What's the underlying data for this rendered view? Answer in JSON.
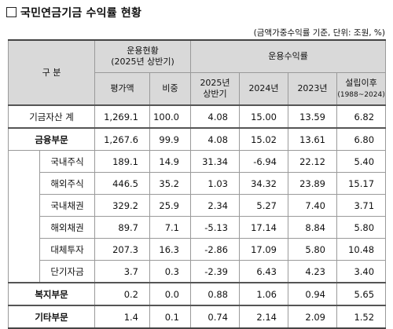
{
  "title": "국민연금기금 수익률 현황",
  "note": "(금액가중수익률 기준, 단위: 조원, %)",
  "header": {
    "category": "구 분",
    "group1": "운용현황",
    "group1_sub": "(2025년 상반기)",
    "group2": "운용수익률",
    "col_value": "평가액",
    "col_share": "비중",
    "col_2025": "2025년",
    "col_2025_b": "상반기",
    "col_2024": "2024년",
    "col_2023": "2023년",
    "col_since": "설립이후",
    "col_since_sub": "(1988~2024)"
  },
  "rows": [
    {
      "label": "기금자산 계",
      "value": "1,269.1",
      "share": "100.0",
      "r2025": "4.08",
      "r2024": "15.00",
      "r2023": "13.59",
      "since": "6.82"
    },
    {
      "label": "금융부문",
      "value": "1,267.6",
      "share": "99.9",
      "r2025": "4.08",
      "r2024": "15.02",
      "r2023": "13.61",
      "since": "6.80"
    },
    {
      "label": "국내주식",
      "value": "189.1",
      "share": "14.9",
      "r2025": "31.34",
      "r2024": "-6.94",
      "r2023": "22.12",
      "since": "5.40"
    },
    {
      "label": "해외주식",
      "value": "446.5",
      "share": "35.2",
      "r2025": "1.03",
      "r2024": "34.32",
      "r2023": "23.89",
      "since": "15.17"
    },
    {
      "label": "국내채권",
      "value": "329.2",
      "share": "25.9",
      "r2025": "2.34",
      "r2024": "5.27",
      "r2023": "7.40",
      "since": "3.71"
    },
    {
      "label": "해외채권",
      "value": "89.7",
      "share": "7.1",
      "r2025": "-5.13",
      "r2024": "17.14",
      "r2023": "8.84",
      "since": "5.80"
    },
    {
      "label": "대체투자",
      "value": "207.3",
      "share": "16.3",
      "r2025": "-2.86",
      "r2024": "17.09",
      "r2023": "5.80",
      "since": "10.48"
    },
    {
      "label": "단기자금",
      "value": "3.7",
      "share": "0.3",
      "r2025": "-2.39",
      "r2024": "6.43",
      "r2023": "4.23",
      "since": "3.40"
    },
    {
      "label": "복지부문",
      "value": "0.2",
      "share": "0.0",
      "r2025": "0.88",
      "r2024": "1.06",
      "r2023": "0.94",
      "since": "5.65"
    },
    {
      "label": "기타부문",
      "value": "1.4",
      "share": "0.1",
      "r2025": "0.74",
      "r2024": "2.14",
      "r2023": "2.09",
      "since": "1.52"
    }
  ]
}
